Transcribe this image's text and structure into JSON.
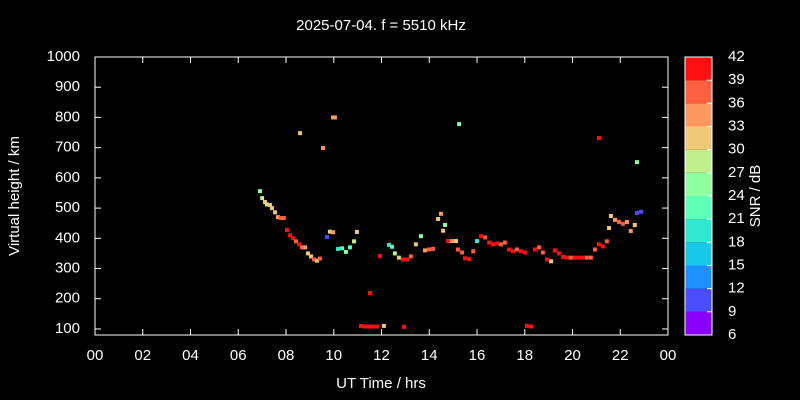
{
  "chart_data": {
    "type": "scatter",
    "title": "2025-07-04. f = 5510 kHz",
    "xlabel": "UT Time / hrs",
    "ylabel": "Virtual height / km",
    "xlim": [
      0,
      24
    ],
    "ylim": [
      80,
      1000
    ],
    "xticks": [
      {
        "value": 0,
        "label": "00"
      },
      {
        "value": 2,
        "label": "02"
      },
      {
        "value": 4,
        "label": "04"
      },
      {
        "value": 6,
        "label": "06"
      },
      {
        "value": 8,
        "label": "08"
      },
      10,
      12,
      14,
      16,
      18,
      20,
      22,
      {
        "value": 24,
        "label": "00"
      }
    ],
    "yticks": [
      100,
      200,
      300,
      400,
      500,
      600,
      700,
      800,
      900,
      1000
    ],
    "colorbar": {
      "label": "SNR / dB",
      "lim": [
        6,
        42
      ],
      "ticks": [
        6,
        9,
        12,
        15,
        18,
        21,
        24,
        27,
        30,
        33,
        36,
        39,
        42
      ],
      "colors": [
        "#8a00ff",
        "#4c4cff",
        "#1e90ff",
        "#18c8e8",
        "#30e8d0",
        "#60ffb8",
        "#90ffa0",
        "#c0f08c",
        "#f0c878",
        "#ff9860",
        "#ff6040",
        "#ff1010"
      ]
    },
    "x": [
      6.91,
      7.0,
      7.12,
      7.2,
      7.33,
      7.41,
      7.54,
      7.66,
      7.79,
      7.91,
      8.04,
      8.17,
      8.29,
      8.42,
      8.55,
      8.67,
      8.8,
      8.92,
      9.05,
      9.17,
      9.3,
      9.42,
      8.59,
      9.55,
      9.97,
      10.05,
      9.72,
      9.84,
      9.97,
      10.18,
      10.35,
      10.51,
      10.68,
      10.85,
      10.97,
      11.14,
      11.31,
      11.48,
      11.64,
      11.81,
      12.1,
      12.94,
      11.52,
      11.94,
      12.31,
      12.44,
      12.56,
      12.73,
      12.9,
      13.07,
      13.23,
      13.44,
      13.65,
      13.82,
      13.99,
      14.16,
      14.37,
      14.49,
      14.58,
      14.66,
      14.79,
      14.95,
      15.12,
      15.25,
      15.2,
      15.37,
      15.5,
      15.67,
      15.84,
      16.0,
      16.17,
      16.34,
      16.51,
      16.67,
      16.84,
      17.0,
      17.17,
      17.34,
      17.51,
      17.67,
      17.84,
      18.01,
      18.09,
      18.26,
      18.43,
      18.6,
      18.76,
      18.93,
      19.1,
      19.26,
      19.43,
      19.6,
      19.77,
      19.93,
      20.1,
      20.27,
      20.43,
      20.6,
      20.77,
      20.94,
      21.11,
      21.27,
      21.11,
      21.44,
      21.53,
      21.61,
      21.78,
      21.95,
      22.11,
      22.28,
      22.44,
      22.61,
      22.7,
      22.7,
      22.87
    ],
    "values": [
      556,
      533,
      520,
      512,
      510,
      500,
      486,
      470,
      467,
      467,
      427,
      410,
      400,
      390,
      380,
      370,
      370,
      350,
      340,
      330,
      326,
      333,
      748,
      699,
      800,
      800,
      404,
      422,
      420,
      365,
      367,
      355,
      370,
      390,
      421,
      110,
      108,
      108,
      108,
      108,
      110,
      107,
      219,
      341,
      378,
      372,
      350,
      336,
      330,
      330,
      340,
      380,
      407,
      360,
      363,
      365,
      464,
      481,
      425,
      444,
      391,
      391,
      391,
      778,
      363,
      353,
      334,
      331,
      357,
      391,
      407,
      403,
      386,
      380,
      383,
      380,
      386,
      363,
      357,
      363,
      357,
      353,
      110,
      108,
      363,
      370,
      353,
      330,
      324,
      360,
      350,
      338,
      336,
      336,
      336,
      336,
      336,
      336,
      336,
      363,
      380,
      373,
      732,
      390,
      434,
      474,
      461,
      454,
      448,
      454,
      424,
      444,
      652,
      484,
      488
    ],
    "snr": [
      24,
      27,
      30,
      28,
      30,
      30,
      31,
      33,
      38,
      38,
      40,
      40,
      40,
      38,
      40,
      38,
      34,
      30,
      31,
      36,
      30,
      38,
      30,
      35,
      33,
      34,
      11,
      30,
      34,
      20,
      22,
      26,
      22,
      27,
      30,
      41,
      40,
      41,
      40,
      41,
      30,
      40,
      40,
      40,
      20,
      22,
      27,
      31,
      40,
      40,
      38,
      30,
      25,
      35,
      38,
      38,
      30,
      34,
      30,
      25,
      40,
      35,
      30,
      26,
      36,
      38,
      41,
      40,
      38,
      20,
      40,
      38,
      40,
      40,
      40,
      38,
      36,
      40,
      40,
      38,
      40,
      40,
      41,
      40,
      40,
      38,
      38,
      40,
      30,
      40,
      40,
      40,
      40,
      38,
      40,
      40,
      40,
      36,
      38,
      38,
      40,
      40,
      40,
      36,
      30,
      30,
      33,
      36,
      38,
      34,
      35,
      30,
      25,
      11,
      10
    ]
  }
}
